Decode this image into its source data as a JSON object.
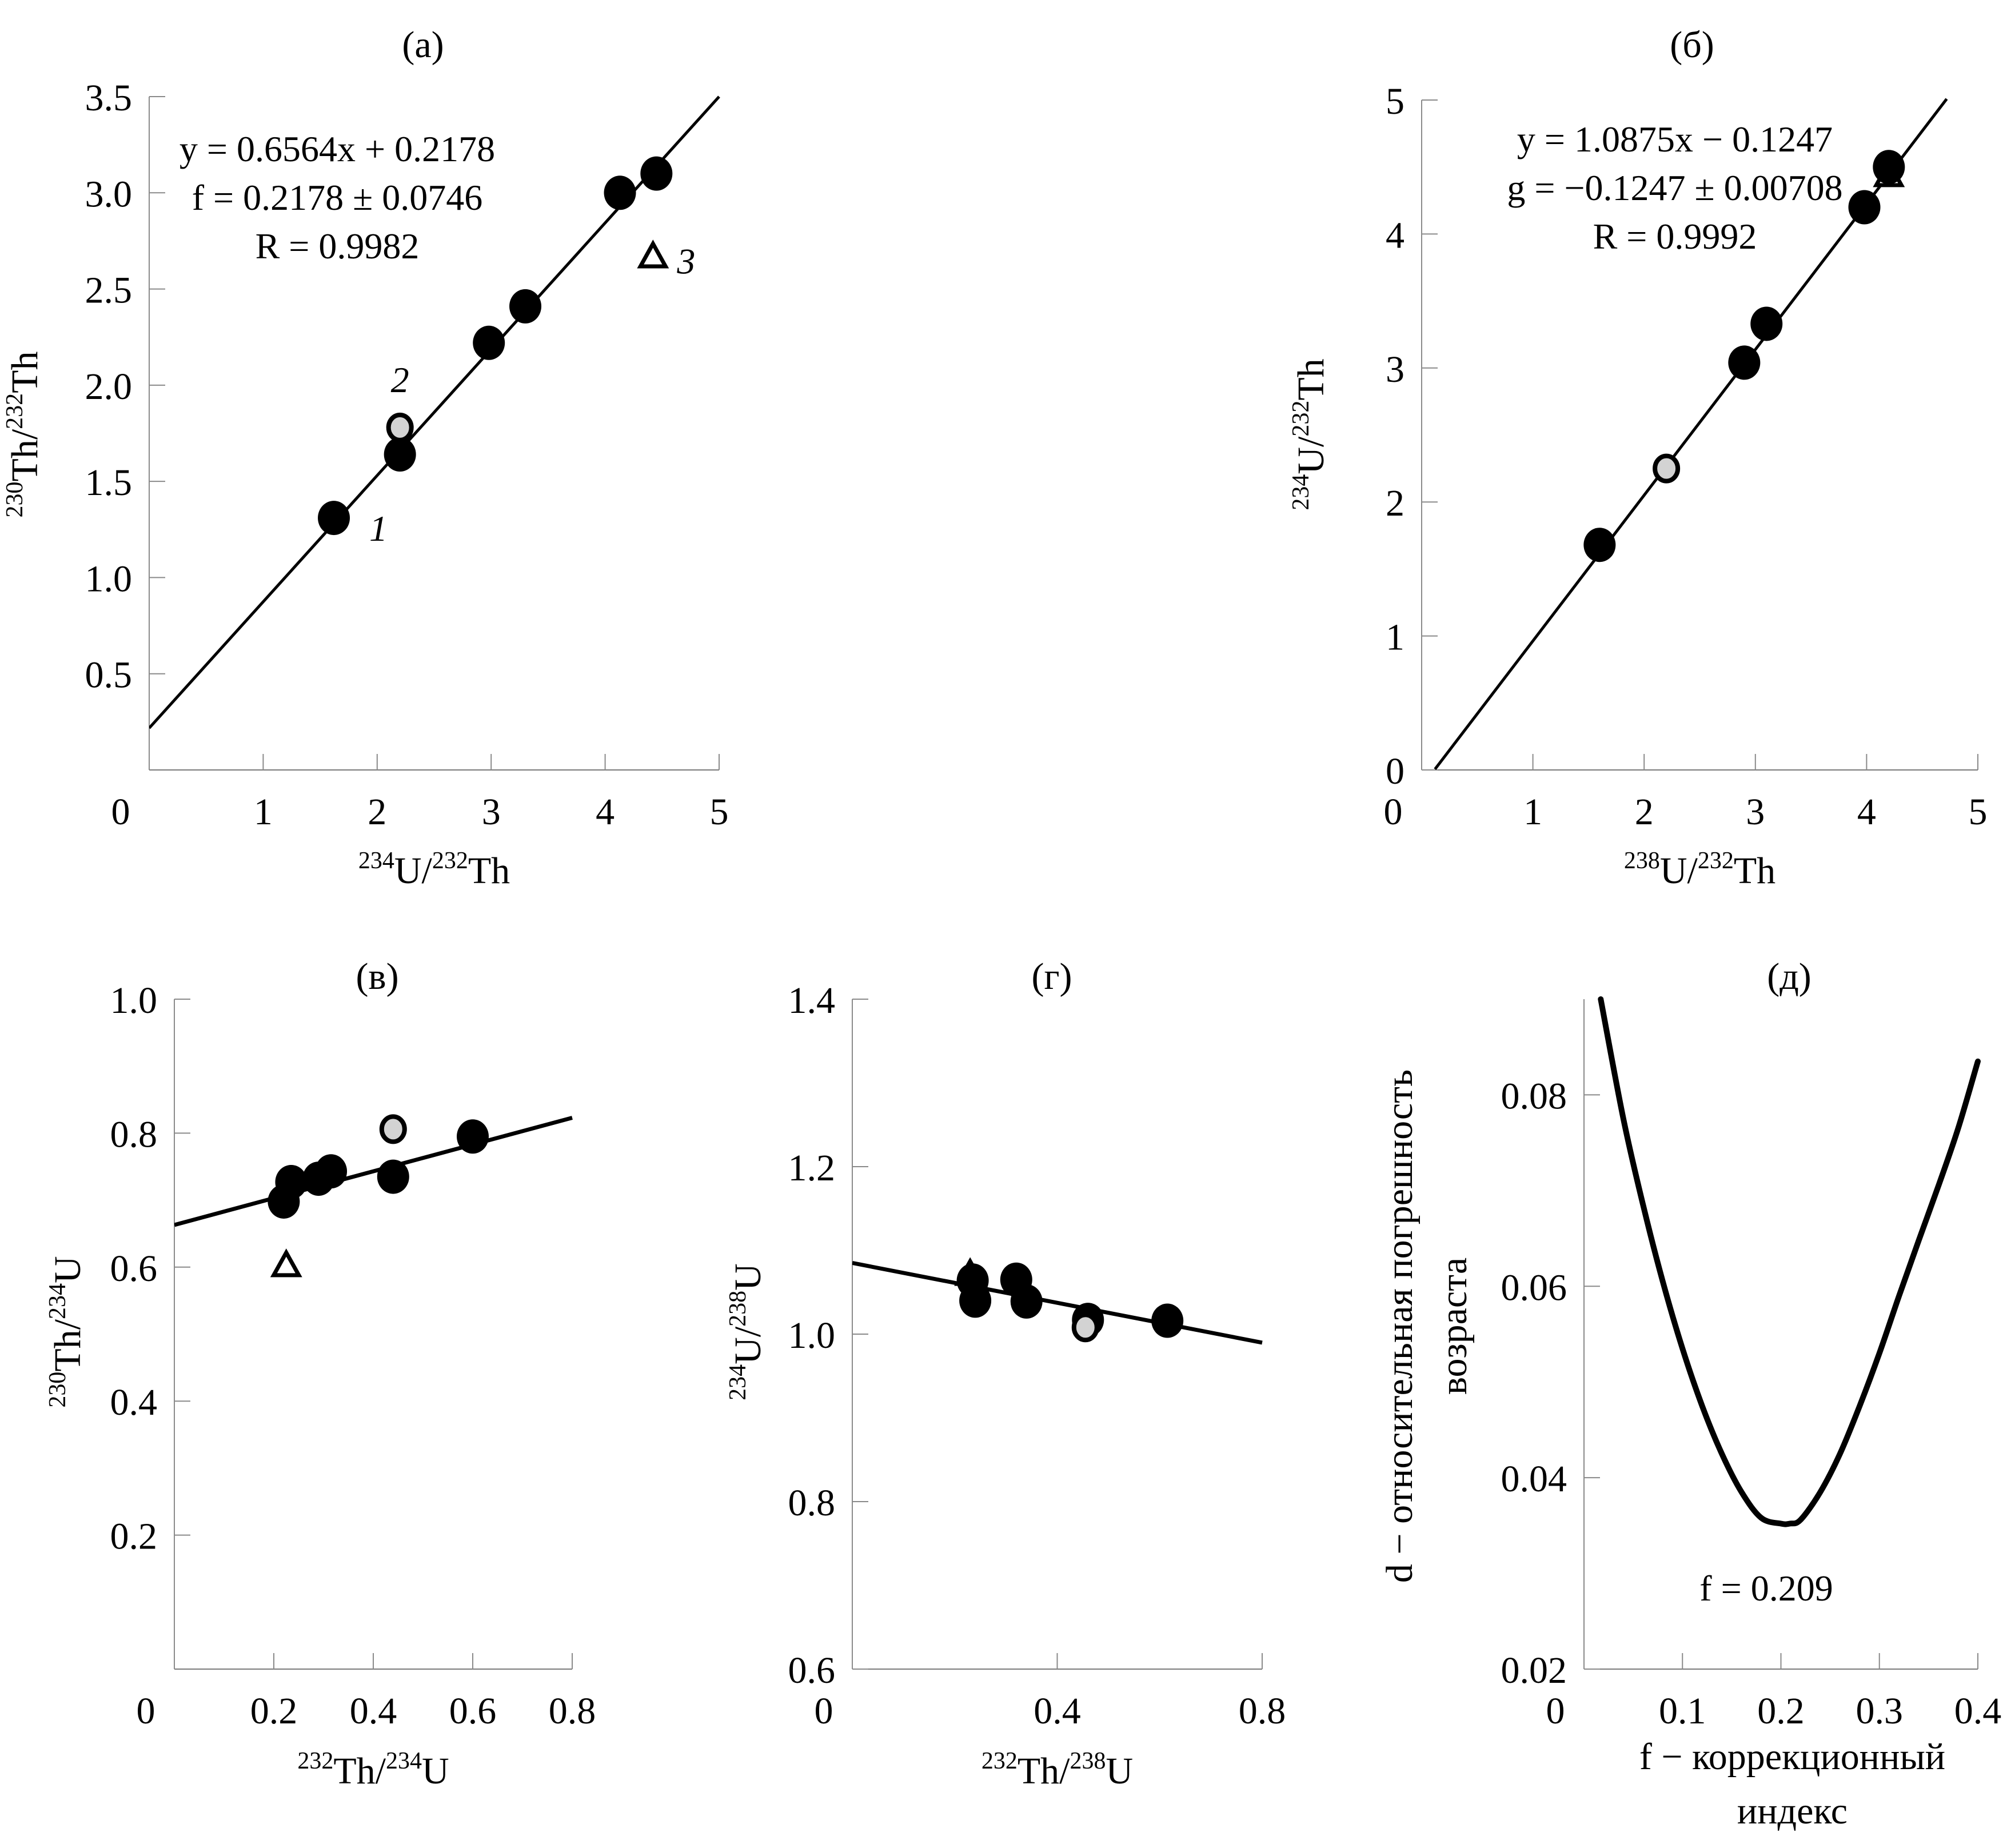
{
  "chart_data": [
    {
      "id": "a",
      "type": "scatter",
      "title": "(a)",
      "xlabel": {
        "base1": "U",
        "iso1": "234",
        "sep": "/",
        "iso2": "232",
        "base2": "Th"
      },
      "ylabel": {
        "base1": "Th",
        "iso1": "230",
        "sep": "/",
        "iso2": "232",
        "base2": "Th"
      },
      "xlim": [
        0,
        5
      ],
      "ylim": [
        0,
        3.5
      ],
      "xticks": [
        0,
        1,
        2,
        3,
        4,
        5
      ],
      "xtick_labels": [
        "0",
        "1",
        "2",
        "3",
        "4",
        "5"
      ],
      "yticks": [
        0.5,
        1.0,
        1.5,
        2.0,
        2.5,
        3.0,
        3.5
      ],
      "ytick_labels": [
        "0.5",
        "1.0",
        "1.5",
        "2.0",
        "2.5",
        "3.0",
        "3.5"
      ],
      "grid": false,
      "fit": {
        "slope": 0.6564,
        "intercept": 0.2178,
        "x_range": [
          0,
          5
        ]
      },
      "annotation_lines": [
        "y = 0.6564x + 0.2178",
        "f = 0.2178 ± 0.0746",
        "R = 0.9982"
      ],
      "points": [
        {
          "x": 1.62,
          "y": 1.31,
          "marker": "filled",
          "label": "1"
        },
        {
          "x": 2.2,
          "y": 1.64,
          "marker": "filled"
        },
        {
          "x": 2.2,
          "y": 1.78,
          "marker": "gray",
          "label": "2"
        },
        {
          "x": 2.98,
          "y": 2.22,
          "marker": "filled"
        },
        {
          "x": 3.3,
          "y": 2.41,
          "marker": "filled"
        },
        {
          "x": 4.13,
          "y": 3.0,
          "marker": "filled"
        },
        {
          "x": 4.45,
          "y": 3.1,
          "marker": "filled"
        },
        {
          "x": 4.42,
          "y": 2.67,
          "marker": "triangle",
          "label": "3"
        }
      ]
    },
    {
      "id": "b",
      "type": "scatter",
      "title": "(б)",
      "xlabel": {
        "base1": "U",
        "iso1": "238",
        "sep": "/",
        "iso2": "232",
        "base2": "Th"
      },
      "ylabel": {
        "base1": "U",
        "iso1": "234",
        "sep": "/",
        "iso2": "232",
        "base2": "Th"
      },
      "xlim": [
        0,
        5
      ],
      "ylim": [
        0,
        5
      ],
      "xticks": [
        0,
        1,
        2,
        3,
        4,
        5
      ],
      "xtick_labels": [
        "0",
        "1",
        "2",
        "3",
        "4",
        "5"
      ],
      "yticks": [
        0,
        1,
        2,
        3,
        4,
        5
      ],
      "ytick_labels": [
        "0",
        "1",
        "2",
        "3",
        "4",
        "5"
      ],
      "grid": false,
      "fit": {
        "slope": 1.0875,
        "intercept": -0.1247,
        "x_range": [
          0.12,
          4.72
        ]
      },
      "annotation_lines": [
        "y = 1.0875x − 0.1247",
        "g = −0.1247 ± 0.00708",
        "R = 0.9992"
      ],
      "points": [
        {
          "x": 1.6,
          "y": 1.68,
          "marker": "filled"
        },
        {
          "x": 2.2,
          "y": 2.25,
          "marker": "gray"
        },
        {
          "x": 2.9,
          "y": 3.04,
          "marker": "filled"
        },
        {
          "x": 3.1,
          "y": 3.33,
          "marker": "filled"
        },
        {
          "x": 4.2,
          "y": 4.44,
          "marker": "triangle"
        },
        {
          "x": 3.98,
          "y": 4.2,
          "marker": "filled"
        },
        {
          "x": 4.2,
          "y": 4.5,
          "marker": "filled"
        }
      ]
    },
    {
      "id": "v",
      "type": "scatter",
      "title": "(в)",
      "xlabel": {
        "base1": "Th",
        "iso1": "232",
        "sep": "/",
        "iso2": "234",
        "base2": "U"
      },
      "ylabel": {
        "base1": "Th",
        "iso1": "230",
        "sep": "/",
        "iso2": "234",
        "base2": "U"
      },
      "xlim": [
        0,
        0.8
      ],
      "ylim": [
        0,
        1.0
      ],
      "xticks": [
        0,
        0.2,
        0.4,
        0.6,
        0.8
      ],
      "xtick_labels": [
        "0",
        "0.2",
        "0.4",
        "0.6",
        "0.8"
      ],
      "yticks": [
        0.2,
        0.4,
        0.6,
        0.8,
        1.0
      ],
      "ytick_labels": [
        "0.2",
        "0.4",
        "0.6",
        "0.8",
        "1.0"
      ],
      "grid": false,
      "fit": {
        "slope": 0.2,
        "intercept": 0.663,
        "x_range": [
          0,
          0.8
        ]
      },
      "points": [
        {
          "x": 0.22,
          "y": 0.698,
          "marker": "filled"
        },
        {
          "x": 0.235,
          "y": 0.727,
          "marker": "filled"
        },
        {
          "x": 0.29,
          "y": 0.732,
          "marker": "filled"
        },
        {
          "x": 0.315,
          "y": 0.743,
          "marker": "filled"
        },
        {
          "x": 0.44,
          "y": 0.735,
          "marker": "filled"
        },
        {
          "x": 0.44,
          "y": 0.806,
          "marker": "gray"
        },
        {
          "x": 0.6,
          "y": 0.795,
          "marker": "filled"
        },
        {
          "x": 0.225,
          "y": 0.603,
          "marker": "triangle"
        }
      ]
    },
    {
      "id": "g",
      "type": "scatter",
      "title": "(г)",
      "xlabel": {
        "base1": "Th",
        "iso1": "232",
        "sep": "/",
        "iso2": "238",
        "base2": "U"
      },
      "ylabel": {
        "base1": "U",
        "iso1": "234",
        "sep": "/",
        "iso2": "238",
        "base2": "U"
      },
      "xlim": [
        0,
        0.8
      ],
      "ylim": [
        0.6,
        1.4
      ],
      "xticks": [
        0,
        0.4,
        0.8
      ],
      "xtick_labels": [
        "0",
        "0.4",
        "0.8"
      ],
      "yticks": [
        0.6,
        0.8,
        1.0,
        1.2,
        1.4
      ],
      "ytick_labels": [
        "0.6",
        "0.8",
        "1.0",
        "1.2",
        "1.4"
      ],
      "grid": false,
      "fit": {
        "slope": -0.119,
        "intercept": 1.085,
        "x_range": [
          0,
          0.8
        ]
      },
      "points": [
        {
          "x": 0.23,
          "y": 1.072,
          "marker": "triangle"
        },
        {
          "x": 0.235,
          "y": 1.064,
          "marker": "filled"
        },
        {
          "x": 0.24,
          "y": 1.04,
          "marker": "filled"
        },
        {
          "x": 0.32,
          "y": 1.065,
          "marker": "filled"
        },
        {
          "x": 0.34,
          "y": 1.039,
          "marker": "filled"
        },
        {
          "x": 0.46,
          "y": 1.017,
          "marker": "filled"
        },
        {
          "x": 0.455,
          "y": 1.008,
          "marker": "gray"
        },
        {
          "x": 0.615,
          "y": 1.016,
          "marker": "filled"
        }
      ]
    },
    {
      "id": "d",
      "type": "line",
      "title": "(д)",
      "xlabel_lines": [
        "f − коррекционный",
        "индекс"
      ],
      "ylabel_lines": [
        "d − относительная погрешность",
        "возраста"
      ],
      "xlim": [
        0,
        0.4
      ],
      "ylim": [
        0.02,
        0.09
      ],
      "xticks": [
        0,
        0.1,
        0.2,
        0.3,
        0.4
      ],
      "xtick_labels": [
        "0",
        "0.1",
        "0.2",
        "0.3",
        "0.4"
      ],
      "yticks": [
        0.02,
        0.04,
        0.06,
        0.08
      ],
      "ytick_labels": [
        "0.02",
        "0.04",
        "0.06",
        "0.08"
      ],
      "grid": false,
      "annotation": "f = 0.209",
      "curve": {
        "x": [
          0.017,
          0.04,
          0.06,
          0.08,
          0.1,
          0.12,
          0.14,
          0.16,
          0.18,
          0.2,
          0.209,
          0.22,
          0.24,
          0.26,
          0.28,
          0.3,
          0.32,
          0.34,
          0.36,
          0.38,
          0.4
        ],
        "y": [
          0.09,
          0.0775,
          0.0685,
          0.0605,
          0.0535,
          0.0475,
          0.0425,
          0.0385,
          0.0358,
          0.0352,
          0.0352,
          0.0356,
          0.0385,
          0.0425,
          0.0475,
          0.053,
          0.059,
          0.0648,
          0.0705,
          0.0765,
          0.0835
        ]
      }
    }
  ]
}
